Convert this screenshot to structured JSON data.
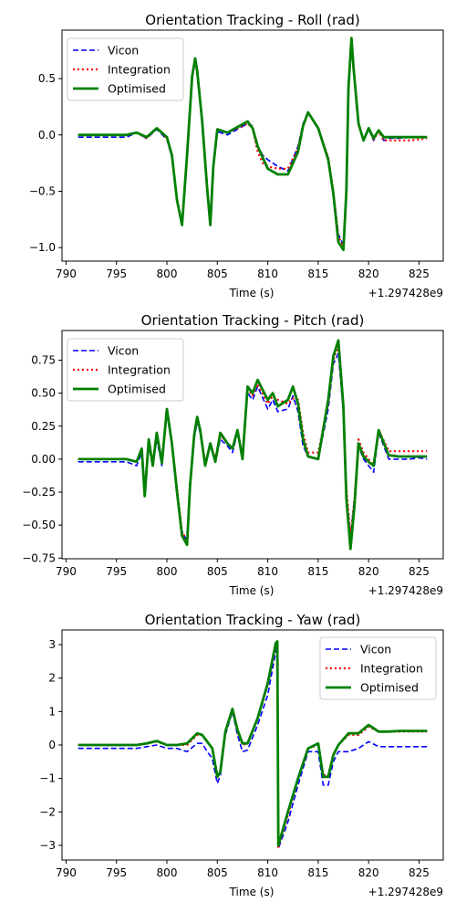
{
  "colors": {
    "vicon": "#0000ff",
    "integration": "#ff0000",
    "optimised": "#008000",
    "axis": "#000000",
    "background": "#ffffff"
  },
  "chart_data": [
    {
      "type": "line",
      "title": "Orientation Tracking - Roll (rad)",
      "xlabel": "Time (s)",
      "x_offset_label": "+1.297428e9",
      "xlim": [
        789.6,
        827.4
      ],
      "ylim": [
        -1.12,
        0.93
      ],
      "xticks": [
        790,
        795,
        800,
        805,
        810,
        815,
        820,
        825
      ],
      "yticks": [
        0.5,
        0.0,
        -0.5,
        -1.0
      ],
      "ytick_labels": [
        "0.5",
        "0.0",
        "−0.5",
        "−1.0"
      ],
      "legend": {
        "position": "top-left",
        "entries": [
          "Vicon",
          "Integration",
          "Optimised"
        ]
      },
      "x": [
        791.2,
        796,
        797,
        798,
        799,
        800,
        800.5,
        801,
        801.5,
        802,
        802.5,
        802.8,
        803,
        803.5,
        804,
        804.3,
        804.6,
        805,
        806,
        807,
        808,
        808.5,
        809,
        809.5,
        810,
        811,
        812,
        813,
        813.5,
        814,
        815,
        816,
        816.5,
        817,
        817.5,
        817.8,
        818,
        818.3,
        818.5,
        819,
        819.5,
        820,
        820.5,
        821,
        821.5,
        822,
        823,
        824,
        825,
        825.8
      ],
      "series": [
        {
          "name": "Vicon",
          "style": "dashed",
          "values": [
            -0.02,
            -0.02,
            0.02,
            -0.03,
            0.05,
            -0.04,
            -0.2,
            -0.6,
            -0.78,
            -0.2,
            0.5,
            0.65,
            0.55,
            0.1,
            -0.5,
            -0.78,
            -0.3,
            0.03,
            0.0,
            0.05,
            0.1,
            0.08,
            -0.1,
            -0.18,
            -0.22,
            -0.28,
            -0.32,
            -0.1,
            0.1,
            0.2,
            0.05,
            -0.2,
            -0.5,
            -0.88,
            -0.98,
            -0.5,
            0.4,
            0.82,
            0.6,
            0.1,
            -0.05,
            0.05,
            -0.05,
            0.05,
            -0.05,
            -0.03,
            -0.03,
            -0.02,
            -0.02,
            -0.02
          ]
        },
        {
          "name": "Integration",
          "style": "dotted",
          "values": [
            0.0,
            0.0,
            0.02,
            -0.03,
            0.06,
            -0.03,
            -0.18,
            -0.58,
            -0.78,
            -0.18,
            0.52,
            0.66,
            0.56,
            0.12,
            -0.48,
            -0.78,
            -0.28,
            0.05,
            0.02,
            0.06,
            0.1,
            0.06,
            -0.15,
            -0.25,
            -0.28,
            -0.3,
            -0.3,
            -0.12,
            0.08,
            0.2,
            0.06,
            -0.2,
            -0.5,
            -0.9,
            -1.0,
            -0.5,
            0.42,
            0.84,
            0.6,
            0.1,
            -0.05,
            0.06,
            -0.04,
            0.03,
            -0.05,
            -0.05,
            -0.05,
            -0.05,
            -0.04,
            -0.03
          ]
        },
        {
          "name": "Optimised",
          "style": "solid",
          "values": [
            0.0,
            0.0,
            0.02,
            -0.02,
            0.06,
            -0.02,
            -0.18,
            -0.58,
            -0.8,
            -0.18,
            0.52,
            0.68,
            0.57,
            0.12,
            -0.48,
            -0.8,
            -0.28,
            0.05,
            0.02,
            0.07,
            0.12,
            0.06,
            -0.1,
            -0.2,
            -0.3,
            -0.35,
            -0.35,
            -0.15,
            0.08,
            0.2,
            0.06,
            -0.22,
            -0.52,
            -0.95,
            -1.02,
            -0.5,
            0.42,
            0.86,
            0.6,
            0.1,
            -0.05,
            0.06,
            -0.03,
            0.04,
            -0.02,
            -0.02,
            -0.02,
            -0.02,
            -0.02,
            -0.02
          ]
        }
      ]
    },
    {
      "type": "line",
      "title": "Orientation Tracking - Pitch (rad)",
      "xlabel": "Time (s)",
      "x_offset_label": "+1.297428e9",
      "xlim": [
        789.6,
        827.4
      ],
      "ylim": [
        -0.755,
        0.975
      ],
      "xticks": [
        790,
        795,
        800,
        805,
        810,
        815,
        820,
        825
      ],
      "yticks": [
        0.75,
        0.5,
        0.25,
        0.0,
        -0.25,
        -0.5,
        -0.75
      ],
      "ytick_labels": [
        "0.75",
        "0.50",
        "0.25",
        "0.00",
        "−0.25",
        "−0.50",
        "−0.75"
      ],
      "legend": {
        "position": "top-left",
        "entries": [
          "Vicon",
          "Integration",
          "Optimised"
        ]
      },
      "x": [
        791.2,
        796,
        797,
        797.5,
        797.8,
        798.2,
        798.6,
        799,
        799.5,
        800,
        800.5,
        801,
        801.5,
        802,
        802.3,
        802.7,
        803,
        803.3,
        803.8,
        804.3,
        804.8,
        805.3,
        806,
        806.5,
        807,
        807.5,
        808,
        808.5,
        809,
        810,
        810.5,
        811,
        812,
        812.5,
        813,
        813.5,
        814,
        815,
        816,
        816.5,
        817,
        817.5,
        817.8,
        818.2,
        818.6,
        819,
        819.5,
        820,
        820.5,
        821,
        822,
        823,
        824,
        825,
        825.8
      ],
      "series": [
        {
          "name": "Vicon",
          "style": "dashed",
          "values": [
            -0.02,
            -0.02,
            -0.05,
            0.05,
            -0.25,
            0.1,
            -0.05,
            0.15,
            -0.05,
            0.35,
            0.1,
            -0.25,
            -0.55,
            -0.62,
            -0.2,
            0.15,
            0.28,
            0.2,
            -0.05,
            0.1,
            -0.02,
            0.15,
            0.1,
            0.05,
            0.2,
            0.0,
            0.5,
            0.45,
            0.55,
            0.38,
            0.45,
            0.36,
            0.38,
            0.48,
            0.36,
            0.1,
            0.02,
            0.0,
            0.38,
            0.72,
            0.8,
            0.35,
            -0.25,
            -0.6,
            -0.3,
            0.1,
            0.0,
            -0.05,
            -0.1,
            0.2,
            0.0,
            0.0,
            0.0,
            0.01,
            0.0
          ]
        },
        {
          "name": "Integration",
          "style": "dotted",
          "values": [
            0.0,
            0.0,
            -0.02,
            0.08,
            -0.22,
            0.12,
            -0.02,
            0.2,
            -0.02,
            0.38,
            0.12,
            -0.22,
            -0.55,
            -0.62,
            -0.18,
            0.17,
            0.3,
            0.22,
            -0.03,
            0.12,
            0.0,
            0.18,
            0.12,
            0.08,
            0.22,
            0.02,
            0.53,
            0.48,
            0.57,
            0.42,
            0.48,
            0.45,
            0.42,
            0.46,
            0.45,
            0.2,
            0.05,
            0.05,
            0.42,
            0.75,
            0.86,
            0.4,
            -0.22,
            -0.58,
            -0.3,
            0.15,
            0.05,
            0.0,
            -0.05,
            0.22,
            0.06,
            0.06,
            0.06,
            0.06,
            0.06
          ]
        },
        {
          "name": "Optimised",
          "style": "solid",
          "values": [
            0.0,
            0.0,
            -0.02,
            0.08,
            -0.28,
            0.15,
            -0.05,
            0.2,
            -0.03,
            0.38,
            0.12,
            -0.25,
            -0.58,
            -0.65,
            -0.2,
            0.18,
            0.32,
            0.22,
            -0.05,
            0.12,
            -0.02,
            0.2,
            0.12,
            0.08,
            0.22,
            0.0,
            0.55,
            0.5,
            0.6,
            0.45,
            0.5,
            0.4,
            0.45,
            0.55,
            0.42,
            0.15,
            0.02,
            0.0,
            0.45,
            0.78,
            0.9,
            0.4,
            -0.3,
            -0.68,
            -0.35,
            0.12,
            0.02,
            -0.02,
            -0.05,
            0.22,
            0.03,
            0.02,
            0.02,
            0.02,
            0.02
          ]
        }
      ]
    },
    {
      "type": "line",
      "title": "Orientation Tracking - Yaw (rad)",
      "xlabel": "Time (s)",
      "x_offset_label": "+1.297428e9",
      "xlim": [
        789.6,
        827.4
      ],
      "ylim": [
        -3.44,
        3.44
      ],
      "xticks": [
        790,
        795,
        800,
        805,
        810,
        815,
        820,
        825
      ],
      "yticks": [
        3,
        2,
        1,
        0,
        -1,
        -2,
        -3
      ],
      "ytick_labels": [
        "3",
        "2",
        "1",
        "0",
        "−1",
        "−2",
        "−3"
      ],
      "legend": {
        "position": "top-right",
        "entries": [
          "Vicon",
          "Integration",
          "Optimised"
        ]
      },
      "x": [
        791.2,
        797,
        798,
        799,
        800,
        801,
        802,
        803,
        803.5,
        804,
        804.5,
        805,
        805.3,
        805.8,
        806.5,
        807,
        807.5,
        808,
        809,
        810,
        810.8,
        810.95,
        811.05,
        812,
        813,
        814,
        815,
        815.5,
        816,
        816.5,
        817,
        818,
        819,
        820,
        821,
        822,
        823,
        824,
        825,
        825.8
      ],
      "series": [
        {
          "name": "Vicon",
          "style": "dashed",
          "values": [
            -0.1,
            -0.1,
            -0.05,
            0.0,
            -0.1,
            -0.1,
            -0.2,
            0.05,
            0.05,
            -0.2,
            -0.4,
            -1.15,
            -0.9,
            0.3,
            1.0,
            0.3,
            -0.2,
            -0.15,
            0.6,
            1.5,
            2.8,
            3.0,
            -3.1,
            -2.3,
            -1.2,
            -0.2,
            -0.2,
            -1.2,
            -1.2,
            -0.5,
            -0.2,
            -0.2,
            -0.1,
            0.1,
            -0.05,
            -0.05,
            -0.05,
            -0.05,
            -0.05,
            -0.05
          ]
        },
        {
          "name": "Integration",
          "style": "dotted",
          "values": [
            0.0,
            0.0,
            0.05,
            0.1,
            0.0,
            0.0,
            0.0,
            0.3,
            0.3,
            0.1,
            -0.1,
            -0.9,
            -0.75,
            0.4,
            1.05,
            0.4,
            0.0,
            0.05,
            0.8,
            1.8,
            3.0,
            3.1,
            -3.05,
            -2.1,
            -1.0,
            -0.1,
            0.0,
            -0.9,
            -0.9,
            -0.3,
            0.0,
            0.3,
            0.3,
            0.55,
            0.4,
            0.4,
            0.4,
            0.4,
            0.4,
            0.4
          ]
        },
        {
          "name": "Optimised",
          "style": "solid",
          "values": [
            0.0,
            0.0,
            0.05,
            0.12,
            0.0,
            0.0,
            0.05,
            0.35,
            0.3,
            0.1,
            -0.1,
            -0.95,
            -0.8,
            0.4,
            1.08,
            0.45,
            0.05,
            0.05,
            0.8,
            1.85,
            3.05,
            3.1,
            -3.0,
            -2.0,
            -1.0,
            -0.1,
            0.05,
            -0.95,
            -0.95,
            -0.3,
            0.0,
            0.35,
            0.35,
            0.6,
            0.4,
            0.4,
            0.42,
            0.42,
            0.42,
            0.42
          ]
        }
      ]
    }
  ]
}
